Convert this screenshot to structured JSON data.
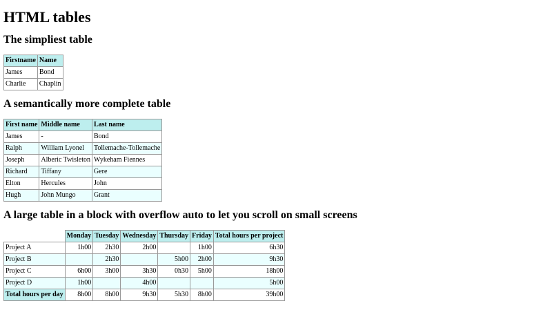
{
  "title": "HTML tables",
  "t1": {
    "heading": "The simpliest table",
    "headers": [
      "Firstname",
      "Name"
    ],
    "rows": [
      [
        "James",
        "Bond"
      ],
      [
        "Charlie",
        "Chaplin"
      ]
    ]
  },
  "t2": {
    "heading": "A semantically more complete table",
    "headers": [
      "First name",
      "Middle name",
      "Last name"
    ],
    "rows": [
      [
        "James",
        "-",
        "Bond"
      ],
      [
        "Ralph",
        "William Lyonel",
        "Tollemache-Tollemache"
      ],
      [
        "Joseph",
        "Alberic Twisleton",
        "Wykeham Fiennes"
      ],
      [
        "Richard",
        "Tiffany",
        "Gere"
      ],
      [
        "Elton",
        "Hercules",
        "John"
      ],
      [
        "Hugh",
        "John Mungo",
        "Grant"
      ]
    ]
  },
  "t3": {
    "heading": "A large table in a block with overflow auto to let you scroll on small screens",
    "headers": [
      "",
      "Monday",
      "Tuesday",
      "Wednesday",
      "Thursday",
      "Friday",
      "Total hours per project"
    ],
    "rows": [
      [
        "Project A",
        "1h00",
        "2h30",
        "2h00",
        "",
        "1h00",
        "6h30"
      ],
      [
        "Project B",
        "",
        "2h30",
        "",
        "5h00",
        "2h00",
        "9h30"
      ],
      [
        "Project C",
        "6h00",
        "3h00",
        "3h30",
        "0h30",
        "5h00",
        "18h00"
      ],
      [
        "Project D",
        "1h00",
        "",
        "4h00",
        "",
        "",
        "5h00"
      ]
    ],
    "footer": [
      "Total hours per day",
      "8h00",
      "8h00",
      "9h30",
      "5h30",
      "8h00",
      "39h00"
    ]
  },
  "colors": {
    "header_bg": "#bdeeee",
    "alt_row_bg": "#eaffff",
    "border": "#999999"
  }
}
